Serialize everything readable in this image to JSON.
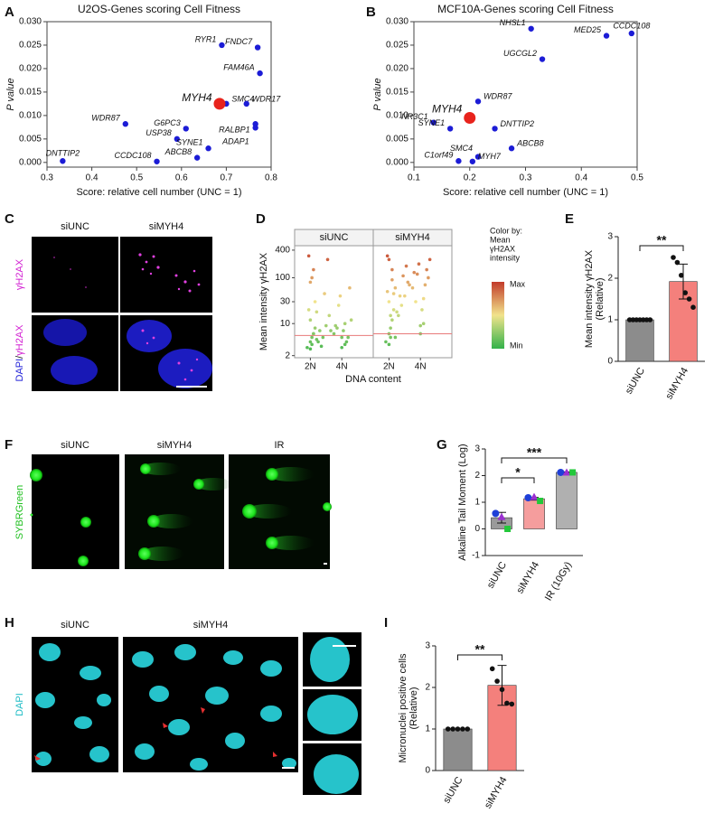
{
  "chart_data": [
    {
      "type": "scatter",
      "panel": "A",
      "title": "U2OS-Genes scoring Cell Fitness",
      "xlabel": "Score: relative cell number (UNC = 1)",
      "ylabel": "P value",
      "xlim": [
        0.3,
        0.8
      ],
      "xticks": [
        0.3,
        0.4,
        0.5,
        0.6,
        0.7,
        0.8
      ],
      "ylim": [
        -0.001,
        0.03
      ],
      "yticks": [
        {
          "value": 0,
          "label": "0.000"
        },
        0.005,
        {
          "value": 0.01,
          "label": "0.010"
        },
        0.015,
        {
          "value": 0.02,
          "label": "0.020"
        },
        0.025,
        {
          "value": 0.03,
          "label": "0.030"
        }
      ],
      "series": [
        {
          "color": "#1c1cd6",
          "size": 3.2,
          "labels": [
            "DNTTIP2",
            "WDR87",
            "CCDC108",
            "USP38",
            "G6PC3",
            "ABCB8",
            "SYNE1",
            "SMC4",
            "WDR17",
            "RALBP1",
            "ADAP1",
            "RYR1",
            "FNDC7",
            "FAM46A"
          ],
          "x": [
            0.335,
            0.475,
            0.545,
            0.59,
            0.61,
            0.635,
            0.66,
            0.7,
            0.745,
            0.765,
            0.765,
            0.69,
            0.77,
            0.775
          ],
          "values": [
            0.0003,
            0.0082,
            0.0002,
            0.005,
            0.0072,
            0.001,
            0.003,
            0.0125,
            0.0125,
            0.0082,
            0.0074,
            0.025,
            0.0245,
            0.019
          ]
        },
        {
          "color": "#e8231c",
          "size": 6.5,
          "labels": [
            "MYH4"
          ],
          "x": [
            0.685
          ],
          "values": [
            0.0125
          ]
        }
      ]
    },
    {
      "type": "scatter",
      "panel": "B",
      "title": "MCF10A-Genes scoring Cell Fitness",
      "xlabel": "Score: relative cell number (UNC = 1)",
      "ylabel": "P value",
      "xlim": [
        0.1,
        0.5
      ],
      "xticks": [
        0.1,
        0.2,
        0.3,
        0.4,
        0.5
      ],
      "ylim": [
        -0.001,
        0.03
      ],
      "yticks": [
        {
          "value": 0,
          "label": "0.000"
        },
        0.005,
        {
          "value": 0.01,
          "label": "0.010"
        },
        0.015,
        {
          "value": 0.02,
          "label": "0.020"
        },
        0.025,
        {
          "value": 0.03,
          "label": "0.030"
        }
      ],
      "series": [
        {
          "color": "#1c1cd6",
          "size": 3.2,
          "labels": [
            "NHSL1",
            "MED25",
            "CCDC108",
            "UGCGL2",
            "WDR87",
            "NR3C1",
            "SYNE1",
            "DNTTIP2",
            "ABCB8",
            "SMC4",
            "C1orf49",
            "MYH7"
          ],
          "x": [
            0.31,
            0.445,
            0.49,
            0.33,
            0.215,
            0.135,
            0.165,
            0.245,
            0.275,
            0.215,
            0.18,
            0.205
          ],
          "values": [
            0.0285,
            0.027,
            0.0275,
            0.022,
            0.013,
            0.0085,
            0.0072,
            0.0072,
            0.003,
            0.0012,
            0.0003,
            0.0002
          ]
        },
        {
          "color": "#e8231c",
          "size": 6.5,
          "labels": [
            "MYH4"
          ],
          "x": [
            0.2
          ],
          "values": [
            0.0095
          ]
        }
      ]
    },
    {
      "type": "facets",
      "panel": "D",
      "ylabel": [
        "Mean intensity γH2AX"
      ],
      "xlabel": "DNA content",
      "log_y": true,
      "ylim": [
        1.8,
        500
      ],
      "yticks": [
        2,
        10,
        30,
        100,
        400
      ],
      "xlim": [
        1,
        6
      ],
      "xticks": [
        {
          "value": 2,
          "label": "2N"
        },
        {
          "value": 4,
          "label": "4N"
        }
      ],
      "colors": [
        "#33b24a",
        "#f1e38c",
        "#c23b2b"
      ],
      "threshold_color": "#e87a7a",
      "colorbar": {
        "title": [
          "Color by:",
          "Mean",
          "γH2AX",
          "intensity"
        ],
        "max_label": "Max",
        "min_label": "Min"
      },
      "facets": [
        {
          "name": "siUNC",
          "threshold": 5.5,
          "x": [
            1.8,
            2.0,
            2.1,
            2.2,
            2.3,
            2.0,
            1.9,
            2.4,
            2.6,
            2.8,
            3.0,
            3.2,
            3.5,
            3.8,
            4.0,
            4.1,
            4.2,
            3.9,
            4.3,
            4.5,
            2.1,
            2.2,
            2.0,
            1.9,
            2.3,
            4.0,
            4.2,
            3.7,
            2.5,
            2.2,
            2.0,
            4.4,
            3.1,
            2.4,
            2.7,
            4.6,
            2.9,
            3.3,
            2.1,
            3.6
          ],
          "values": [
            3,
            4,
            5,
            6,
            8,
            12,
            20,
            4.5,
            7,
            5,
            9,
            15,
            6,
            25,
            5,
            7,
            10,
            40,
            4,
            60,
            3.5,
            150,
            80,
            300,
            30,
            3,
            3.5,
            8,
            4,
            6,
            2.8,
            5,
            250,
            18,
            3.2,
            12,
            45,
            7,
            100,
            9
          ]
        },
        {
          "name": "siMYH4",
          "threshold": 6,
          "x": [
            1.8,
            2.0,
            2.1,
            2.2,
            2.3,
            2.0,
            1.9,
            2.4,
            2.6,
            2.8,
            3.0,
            3.2,
            3.5,
            3.8,
            4.0,
            4.1,
            4.2,
            3.9,
            4.3,
            4.5,
            2.1,
            2.2,
            2.0,
            1.9,
            2.3,
            4.0,
            4.2,
            3.7,
            2.5,
            2.2,
            2.0,
            4.4,
            3.1,
            2.4,
            2.7,
            4.6,
            2.9,
            3.3,
            2.1,
            3.6
          ],
          "values": [
            4,
            6,
            8,
            12,
            20,
            30,
            50,
            5,
            15,
            25,
            40,
            80,
            60,
            120,
            9,
            20,
            35,
            200,
            70,
            100,
            5,
            150,
            250,
            300,
            45,
            6,
            10,
            30,
            18,
            90,
            3.5,
            150,
            180,
            60,
            40,
            250,
            110,
            70,
            15,
            130
          ]
        }
      ]
    },
    {
      "type": "bar",
      "panel": "E",
      "ylabel": [
        "Mean intensity γH2AX",
        "(Relative)"
      ],
      "categories": [
        "siUNC",
        "siMYH4"
      ],
      "values": [
        1,
        1.92
      ],
      "errors": [
        0,
        0.42
      ],
      "colors": [
        "#8c8c8c",
        "#f4807c"
      ],
      "ylim": [
        0,
        3
      ],
      "yticks": [
        0,
        1,
        2,
        3
      ],
      "points": [
        [
          1,
          1,
          1,
          1,
          1,
          1,
          1
        ],
        [
          2.5,
          2.38,
          2.07,
          1.65,
          1.5,
          1.3
        ]
      ],
      "point_shapes": [
        "circle"
      ],
      "point_colors": [
        "#111111"
      ],
      "significance": [
        {
          "pair": [
            "siUNC",
            "siMYH4"
          ],
          "label": "**"
        }
      ]
    },
    {
      "type": "bar",
      "panel": "G",
      "ylabel": [
        "Alkaline Tail Moment (Log)"
      ],
      "categories": [
        "siUNC",
        "siMYH4",
        "IR (10Gy)"
      ],
      "values": [
        0.42,
        1.13,
        2.12
      ],
      "errors": [
        0.2,
        0.05,
        0.02
      ],
      "colors": [
        "#9a9a9a",
        "#f59d9d",
        "#b0b0b0"
      ],
      "ylim": [
        -1,
        3
      ],
      "yticks": [
        -1,
        0,
        1,
        2,
        3
      ],
      "points": [
        [
          0.58,
          0.45,
          0
        ],
        [
          1.17,
          1.2,
          1.05
        ],
        [
          2.12,
          2.12,
          2.12
        ]
      ],
      "point_shapes": [
        "circle",
        "triangle",
        "square"
      ],
      "point_colors": [
        "#1f3fd8",
        "#9b30d0",
        "#22c83a"
      ],
      "significance": [
        {
          "pair": [
            "siUNC",
            "siMYH4"
          ],
          "label": "*"
        },
        {
          "pair": [
            "siUNC",
            "IR (10Gy)"
          ],
          "label": "***"
        }
      ]
    },
    {
      "type": "bar",
      "panel": "I",
      "ylabel": [
        "Micronuclei positive cells",
        "(Relative)"
      ],
      "categories": [
        "siUNC",
        "siMYH4"
      ],
      "values": [
        1,
        2.05
      ],
      "errors": [
        0,
        0.48
      ],
      "colors": [
        "#8c8c8c",
        "#f4807c"
      ],
      "ylim": [
        0,
        3
      ],
      "yticks": [
        0,
        1,
        2,
        3
      ],
      "points": [
        [
          1,
          1,
          1,
          1,
          1
        ],
        [
          2.45,
          2.15,
          1.95,
          1.62,
          1.6
        ]
      ],
      "point_shapes": [
        "circle"
      ],
      "point_colors": [
        "#111111"
      ],
      "significance": [
        {
          "pair": [
            "siUNC",
            "siMYH4"
          ],
          "label": "**"
        }
      ]
    }
  ],
  "images": [
    {
      "panel": "C",
      "columns": [
        "siUNC",
        "siMYH4"
      ],
      "rows": [
        [
          "γH2AX"
        ],
        [
          "DAPI",
          "/",
          "γH2AX"
        ]
      ]
    },
    {
      "panel": "F",
      "columns": [
        "siUNC",
        "siMYH4",
        "IR"
      ],
      "rows": [
        [
          "SYBRGreen"
        ]
      ]
    },
    {
      "panel": "H",
      "columns": [
        "siUNC",
        "siMYH4"
      ],
      "rows": [
        [
          "DAPI"
        ]
      ]
    }
  ]
}
